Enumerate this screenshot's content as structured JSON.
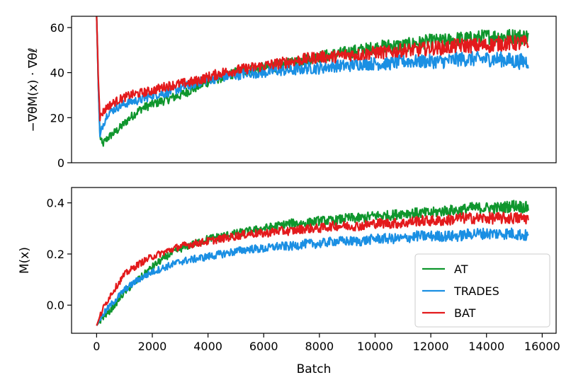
{
  "colors": {
    "AT": "#0f962d",
    "TRADES": "#1a8fe3",
    "BAT": "#e31a1c"
  },
  "chart_data": [
    {
      "type": "line",
      "ylabel": "−∇θM(x) · ∇θℓ",
      "xlabel": "",
      "xlim": [
        -900,
        16500
      ],
      "ylim": [
        0,
        65
      ],
      "yticks": [
        0,
        20,
        40,
        60
      ],
      "xticks": [],
      "legend": "none",
      "series": [
        {
          "name": "AT",
          "color": "#0f962d",
          "x": [
            0,
            60,
            120,
            200,
            400,
            800,
            1200,
            1600,
            2000,
            2500,
            3000,
            3500,
            4000,
            4500,
            5000,
            5500,
            6000,
            6500,
            7000,
            7500,
            8000,
            8500,
            9000,
            9500,
            10000,
            10500,
            11000,
            11500,
            12000,
            12500,
            13000,
            13500,
            14000,
            14500,
            15000,
            15500
          ],
          "y": [
            65,
            35,
            12,
            8,
            11,
            15,
            20,
            24,
            26,
            28,
            30,
            33,
            36,
            38,
            40,
            41,
            42,
            43,
            44,
            46,
            47,
            48,
            49,
            50,
            51,
            52,
            52,
            53,
            54,
            54,
            55,
            55,
            56,
            56,
            56,
            56
          ]
        },
        {
          "name": "TRADES",
          "color": "#1a8fe3",
          "x": [
            0,
            60,
            120,
            200,
            400,
            800,
            1200,
            1600,
            2000,
            2500,
            3000,
            3500,
            4000,
            4500,
            5000,
            5500,
            6000,
            6500,
            7000,
            7500,
            8000,
            8500,
            9000,
            9500,
            10000,
            10500,
            11000,
            11500,
            12000,
            12500,
            13000,
            13500,
            14000,
            14500,
            15000,
            15500
          ],
          "y": [
            65,
            35,
            11,
            16,
            22,
            25,
            27,
            28,
            30,
            31,
            33,
            35,
            37,
            38,
            39,
            40,
            40,
            41,
            41,
            42,
            42,
            43,
            43,
            44,
            44,
            44,
            45,
            45,
            45,
            45,
            46,
            46,
            46,
            46,
            45,
            45
          ]
        },
        {
          "name": "BAT",
          "color": "#e31a1c",
          "x": [
            0,
            60,
            120,
            200,
            400,
            800,
            1200,
            1600,
            2000,
            2500,
            3000,
            3500,
            4000,
            4500,
            5000,
            5500,
            6000,
            6500,
            7000,
            7500,
            8000,
            8500,
            9000,
            9500,
            10000,
            10500,
            11000,
            11500,
            12000,
            12500,
            13000,
            13500,
            14000,
            14500,
            15000,
            15500
          ],
          "y": [
            65,
            38,
            20,
            22,
            25,
            28,
            30,
            31,
            32,
            34,
            35,
            36,
            38,
            40,
            41,
            42,
            43,
            44,
            45,
            46,
            47,
            47,
            48,
            48,
            49,
            49,
            50,
            50,
            51,
            51,
            52,
            52,
            52,
            53,
            53,
            53
          ]
        }
      ]
    },
    {
      "type": "line",
      "ylabel": "M(x)",
      "xlabel": "Batch",
      "xlim": [
        -900,
        16500
      ],
      "ylim": [
        -0.11,
        0.46
      ],
      "yticks": [
        0.0,
        0.2,
        0.4
      ],
      "ytick_labels": [
        "0.0",
        "0.2",
        "0.4"
      ],
      "xticks": [
        0,
        2000,
        4000,
        6000,
        8000,
        10000,
        12000,
        14000,
        16000
      ],
      "legend": "lower-right",
      "series": [
        {
          "name": "AT",
          "color": "#0f962d",
          "x": [
            0,
            200,
            500,
            1000,
            1500,
            2000,
            2500,
            3000,
            3500,
            4000,
            4500,
            5000,
            5500,
            6000,
            6500,
            7000,
            7500,
            8000,
            8500,
            9000,
            9500,
            10000,
            10500,
            11000,
            11500,
            12000,
            12500,
            13000,
            13500,
            14000,
            14500,
            15000,
            15500
          ],
          "y": [
            -0.08,
            -0.05,
            -0.02,
            0.05,
            0.1,
            0.15,
            0.19,
            0.22,
            0.24,
            0.26,
            0.27,
            0.28,
            0.29,
            0.3,
            0.31,
            0.32,
            0.32,
            0.33,
            0.33,
            0.34,
            0.34,
            0.35,
            0.35,
            0.36,
            0.36,
            0.36,
            0.37,
            0.37,
            0.38,
            0.38,
            0.38,
            0.39,
            0.38
          ]
        },
        {
          "name": "TRADES",
          "color": "#1a8fe3",
          "x": [
            0,
            200,
            500,
            1000,
            1500,
            2000,
            2500,
            3000,
            3500,
            4000,
            4500,
            5000,
            5500,
            6000,
            6500,
            7000,
            7500,
            8000,
            8500,
            9000,
            9500,
            10000,
            10500,
            11000,
            11500,
            12000,
            12500,
            13000,
            13500,
            14000,
            14500,
            15000,
            15500
          ],
          "y": [
            -0.08,
            -0.04,
            0.0,
            0.06,
            0.1,
            0.13,
            0.15,
            0.17,
            0.18,
            0.19,
            0.2,
            0.21,
            0.22,
            0.22,
            0.23,
            0.23,
            0.24,
            0.24,
            0.25,
            0.25,
            0.25,
            0.26,
            0.26,
            0.26,
            0.27,
            0.27,
            0.27,
            0.27,
            0.28,
            0.28,
            0.28,
            0.28,
            0.27
          ]
        },
        {
          "name": "BAT",
          "color": "#e31a1c",
          "x": [
            0,
            200,
            500,
            1000,
            1500,
            2000,
            2500,
            3000,
            3500,
            4000,
            4500,
            5000,
            5500,
            6000,
            6500,
            7000,
            7500,
            8000,
            8500,
            9000,
            9500,
            10000,
            10500,
            11000,
            11500,
            12000,
            12500,
            13000,
            13500,
            14000,
            14500,
            15000,
            15500
          ],
          "y": [
            -0.08,
            -0.02,
            0.04,
            0.12,
            0.16,
            0.19,
            0.21,
            0.23,
            0.24,
            0.25,
            0.26,
            0.27,
            0.28,
            0.28,
            0.29,
            0.29,
            0.3,
            0.3,
            0.31,
            0.31,
            0.31,
            0.32,
            0.32,
            0.32,
            0.33,
            0.33,
            0.33,
            0.34,
            0.34,
            0.34,
            0.34,
            0.34,
            0.34
          ]
        }
      ]
    }
  ]
}
